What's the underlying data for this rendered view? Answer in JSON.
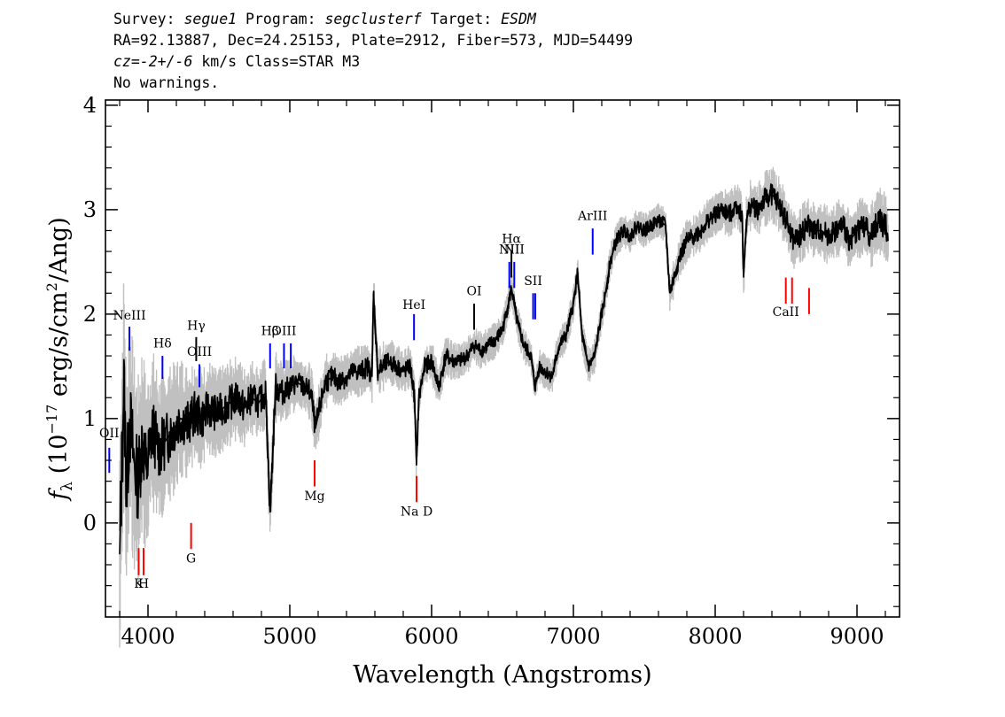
{
  "header": {
    "line1": [
      {
        "text": "Survey: ",
        "italic": false
      },
      {
        "text": "segue1",
        "italic": true
      },
      {
        "text": " Program: ",
        "italic": false
      },
      {
        "text": "segclusterf",
        "italic": true
      },
      {
        "text": " Target: ",
        "italic": false
      },
      {
        "text": "ESDM",
        "italic": true
      }
    ],
    "line2": "RA=92.13887, Dec=24.25153, Plate=2912, Fiber=573, MJD=54499",
    "line3": [
      {
        "text": "cz=-2+/-6",
        "italic": true
      },
      {
        "text": " km/s Class=STAR M3",
        "italic": false
      }
    ],
    "line4": "No warnings."
  },
  "chart_data": {
    "type": "line",
    "xlabel": "Wavelength (Angstroms)",
    "ylabel": "f_λ (10^-17 erg/s/cm^2/Ang)",
    "ylabel_parts": {
      "flambda": "f",
      "sub": "λ",
      "pre": " (10",
      "exp1": "−17",
      "mid": " erg/s/cm",
      "exp2": "2",
      "post": "/Ang)"
    },
    "xlim": [
      3700,
      9300
    ],
    "ylim": [
      -0.9,
      4.05
    ],
    "xticks": [
      4000,
      5000,
      6000,
      7000,
      8000,
      9000
    ],
    "yticks": [
      0,
      1,
      2,
      3,
      4
    ],
    "series": [
      {
        "role": "flux",
        "color": "#000000",
        "x": [
          3800,
          3830,
          3850,
          3870,
          3900,
          3930,
          3960,
          3990,
          4030,
          4080,
          4130,
          4180,
          4230,
          4280,
          4330,
          4380,
          4430,
          4480,
          4530,
          4580,
          4630,
          4680,
          4730,
          4780,
          4830,
          4861,
          4900,
          4950,
          5000,
          5050,
          5100,
          5150,
          5180,
          5250,
          5300,
          5350,
          5400,
          5450,
          5500,
          5550,
          5580,
          5590,
          5620,
          5660,
          5700,
          5750,
          5800,
          5850,
          5880,
          5893,
          5910,
          5950,
          6000,
          6050,
          6100,
          6150,
          6200,
          6250,
          6300,
          6350,
          6400,
          6450,
          6500,
          6550,
          6563,
          6600,
          6650,
          6700,
          6730,
          6760,
          6800,
          6850,
          6900,
          6950,
          7000,
          7030,
          7060,
          7090,
          7110,
          7150,
          7180,
          7220,
          7260,
          7300,
          7350,
          7400,
          7450,
          7500,
          7550,
          7600,
          7650,
          7680,
          7700,
          7750,
          7800,
          7850,
          7900,
          7950,
          8000,
          8050,
          8100,
          8150,
          8190,
          8200,
          8220,
          8250,
          8300,
          8350,
          8400,
          8450,
          8500,
          8550,
          8600,
          8650,
          8700,
          8750,
          8800,
          8850,
          8900,
          8950,
          9000,
          9050,
          9100,
          9150,
          9200,
          9220
        ],
        "y": [
          -0.3,
          1.3,
          0.3,
          1.0,
          0.6,
          0.4,
          0.8,
          0.5,
          0.9,
          0.7,
          0.8,
          0.9,
          1.0,
          0.95,
          1.05,
          1.0,
          1.1,
          1.05,
          1.1,
          1.15,
          1.2,
          1.1,
          1.2,
          1.15,
          1.25,
          0.1,
          1.3,
          1.25,
          1.3,
          1.35,
          1.3,
          1.25,
          0.9,
          1.35,
          1.4,
          1.35,
          1.4,
          1.45,
          1.45,
          1.5,
          1.4,
          2.2,
          1.45,
          1.5,
          1.55,
          1.5,
          1.45,
          1.5,
          1.2,
          0.55,
          1.2,
          1.5,
          1.55,
          1.3,
          1.6,
          1.55,
          1.55,
          1.6,
          1.7,
          1.65,
          1.7,
          1.75,
          1.85,
          2.15,
          2.25,
          1.95,
          1.7,
          1.6,
          1.3,
          1.5,
          1.45,
          1.4,
          1.7,
          1.8,
          2.1,
          2.4,
          1.8,
          1.6,
          1.5,
          1.6,
          1.85,
          2.15,
          2.5,
          2.7,
          2.8,
          2.75,
          2.85,
          2.8,
          2.85,
          2.9,
          2.85,
          2.2,
          2.3,
          2.55,
          2.7,
          2.75,
          2.8,
          2.9,
          2.95,
          3.0,
          2.95,
          3.05,
          2.95,
          2.35,
          2.9,
          3.05,
          3.0,
          3.1,
          3.15,
          3.05,
          2.9,
          2.7,
          2.75,
          2.85,
          2.8,
          2.8,
          2.75,
          2.8,
          2.85,
          2.7,
          2.8,
          2.85,
          2.75,
          2.9,
          2.85,
          2.7
        ]
      },
      {
        "role": "error-band",
        "color": "#c0c0c0",
        "x": [
          3750,
          3800,
          3850,
          3900,
          3950,
          4000,
          4100,
          4200,
          4300,
          4400,
          4500,
          4600,
          4700,
          4800,
          4900,
          5000,
          5200,
          5400,
          5600,
          5800,
          6000,
          6200,
          6400,
          6600,
          6800,
          7000,
          7200,
          7400,
          7600,
          7800,
          8000,
          8200,
          8400,
          8600,
          8800,
          9000,
          9200
        ],
        "spread": [
          0.9,
          0.9,
          0.8,
          0.75,
          0.7,
          0.6,
          0.5,
          0.45,
          0.4,
          0.35,
          0.3,
          0.3,
          0.28,
          0.25,
          0.25,
          0.2,
          0.2,
          0.18,
          0.18,
          0.15,
          0.15,
          0.13,
          0.13,
          0.12,
          0.12,
          0.12,
          0.12,
          0.12,
          0.12,
          0.15,
          0.15,
          0.17,
          0.2,
          0.2,
          0.2,
          0.2,
          0.25
        ]
      }
    ],
    "emission_lines": [
      {
        "label": "OII",
        "x": 3727,
        "y1": 0.48,
        "y2": 0.72,
        "color": "#0000ff",
        "label_y": 0.82
      },
      {
        "label": "NeIII",
        "x": 3869,
        "y1": 1.65,
        "y2": 1.88,
        "color": "#0000ff",
        "label_y": 1.95
      },
      {
        "label": "Hδ",
        "x": 4102,
        "y1": 1.38,
        "y2": 1.6,
        "color": "#0000ff",
        "label_y": 1.68
      },
      {
        "label": "Hγ",
        "x": 4340,
        "y1": 1.55,
        "y2": 1.78,
        "color": "#000000",
        "label_y": 1.85
      },
      {
        "label": "OIII",
        "x": 4363,
        "y1": 1.3,
        "y2": 1.52,
        "color": "#0000ff",
        "label_y": 1.6
      },
      {
        "label": "Hβ",
        "x": 4861,
        "y1": 1.48,
        "y2": 1.72,
        "color": "#0000ff",
        "label_y": 1.8
      },
      {
        "label": "OIII",
        "x": 4959,
        "y1": 1.48,
        "y2": 1.72,
        "color": "#0000ff",
        "label_y": 1.8
      },
      {
        "label": "",
        "x": 5007,
        "y1": 1.48,
        "y2": 1.72,
        "color": "#0000ff",
        "label_y": 1.8
      },
      {
        "label": "HeI",
        "x": 5876,
        "y1": 1.75,
        "y2": 2.0,
        "color": "#0000ff",
        "label_y": 2.05
      },
      {
        "label": "OI",
        "x": 6300,
        "y1": 1.85,
        "y2": 2.1,
        "color": "#000000",
        "label_y": 2.18
      },
      {
        "label": "NII",
        "x": 6548,
        "y1": 2.25,
        "y2": 2.5,
        "color": "#0000ff",
        "label_y": 2.58
      },
      {
        "label": "Hα",
        "x": 6563,
        "y1": 2.35,
        "y2": 2.6,
        "color": "#000000",
        "label_y": 2.68
      },
      {
        "label": "NII",
        "x": 6583,
        "y1": 2.25,
        "y2": 2.5,
        "color": "#0000ff",
        "label_y": 2.58
      },
      {
        "label": "SII",
        "x": 6716,
        "y1": 1.95,
        "y2": 2.2,
        "color": "#0000ff",
        "label_y": 2.28
      },
      {
        "label": "",
        "x": 6731,
        "y1": 1.95,
        "y2": 2.2,
        "color": "#0000ff",
        "label_y": 2.28
      },
      {
        "label": "ArIII",
        "x": 7136,
        "y1": 2.57,
        "y2": 2.82,
        "color": "#0000ff",
        "label_y": 2.9
      }
    ],
    "absorption_lines": [
      {
        "label": "K",
        "x": 3934,
        "y1": -0.5,
        "y2": -0.24,
        "color": "#ff0000",
        "label_y": -0.62
      },
      {
        "label": "H",
        "x": 3969,
        "y1": -0.5,
        "y2": -0.24,
        "color": "#ff0000",
        "label_y": -0.62
      },
      {
        "label": "G",
        "x": 4304,
        "y1": -0.25,
        "y2": 0.0,
        "color": "#ff0000",
        "label_y": -0.38
      },
      {
        "label": "Mg",
        "x": 5175,
        "y1": 0.35,
        "y2": 0.6,
        "color": "#ff0000",
        "label_y": 0.22
      },
      {
        "label": "Na D",
        "x": 5894,
        "y1": 0.2,
        "y2": 0.45,
        "color": "#ff0000",
        "label_y": 0.07
      },
      {
        "label": "CaII",
        "x": 8498,
        "y1": 2.1,
        "y2": 2.35,
        "color": "#ff0000",
        "label_y": 1.98
      },
      {
        "label": "",
        "x": 8542,
        "y1": 2.1,
        "y2": 2.35,
        "color": "#ff0000",
        "label_y": 1.98
      },
      {
        "label": "",
        "x": 8662,
        "y1": 2.0,
        "y2": 2.25,
        "color": "#ff0000",
        "label_y": 1.98
      }
    ]
  }
}
